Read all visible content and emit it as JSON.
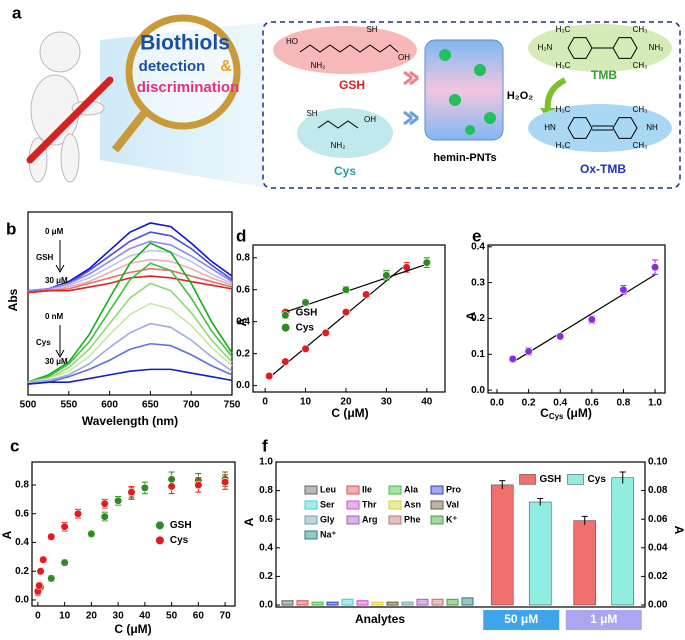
{
  "panel_a": {
    "label": "a",
    "title": [
      "Biothiols",
      "detection",
      "&",
      "discrimination"
    ],
    "molecules": {
      "gsh": "GSH",
      "cys": "Cys",
      "material": "hemin-PNTs",
      "tmb": "TMB",
      "oxidant": "H₂O₂",
      "ox_tmb": "Ox-TMB"
    },
    "atoms": {
      "gsh": [
        "HO",
        "NH₂",
        "SH",
        "OH"
      ],
      "cys": [
        "SH",
        "NH₂",
        "OH"
      ],
      "tmb": [
        "H₃C",
        "CH₃",
        "H₂N",
        "NH₂",
        "H₃C",
        "CH₃"
      ],
      "ox_tmb": [
        "H₃C",
        "CH₃",
        "HN",
        "NH",
        "H₃C",
        "CH₃"
      ]
    }
  },
  "chart_data": [
    {
      "type": "line",
      "label": "b",
      "xlabel": "Wavelength (nm)",
      "ylabel": "Abs",
      "x": [
        500,
        525,
        550,
        575,
        600,
        625,
        650,
        675,
        700,
        725,
        750
      ],
      "xlim": [
        500,
        750
      ],
      "xticks": [
        500,
        550,
        600,
        650,
        700,
        750
      ],
      "ylim": [
        0,
        1
      ],
      "annotations": [
        "0 μM",
        "GSH",
        "30 μM",
        "0 nM",
        "Cys",
        "30 μM"
      ],
      "series": [
        {
          "color": "#1010e0",
          "values": [
            0.57,
            0.58,
            0.62,
            0.69,
            0.79,
            0.89,
            0.94,
            0.92,
            0.83,
            0.73,
            0.65
          ]
        },
        {
          "color": "#4a4ae8",
          "values": [
            0.57,
            0.58,
            0.61,
            0.68,
            0.76,
            0.84,
            0.89,
            0.87,
            0.8,
            0.71,
            0.63
          ]
        },
        {
          "color": "#8a8ae8",
          "values": [
            0.57,
            0.58,
            0.61,
            0.66,
            0.73,
            0.8,
            0.84,
            0.82,
            0.76,
            0.69,
            0.62
          ]
        },
        {
          "color": "#c0c0ec",
          "values": [
            0.56,
            0.57,
            0.6,
            0.64,
            0.7,
            0.76,
            0.79,
            0.78,
            0.73,
            0.66,
            0.61
          ]
        },
        {
          "color": "#eab0b0",
          "values": [
            0.56,
            0.57,
            0.59,
            0.62,
            0.67,
            0.72,
            0.74,
            0.73,
            0.69,
            0.64,
            0.6
          ]
        },
        {
          "color": "#e87070",
          "values": [
            0.56,
            0.57,
            0.58,
            0.61,
            0.64,
            0.67,
            0.69,
            0.68,
            0.65,
            0.62,
            0.59
          ]
        },
        {
          "color": "#e02020",
          "values": [
            0.56,
            0.57,
            0.57,
            0.59,
            0.61,
            0.64,
            0.65,
            0.64,
            0.62,
            0.6,
            0.58
          ]
        },
        {
          "color": "#10b010",
          "values": [
            0.07,
            0.11,
            0.18,
            0.33,
            0.53,
            0.72,
            0.83,
            0.78,
            0.61,
            0.4,
            0.23
          ]
        },
        {
          "color": "#40c040",
          "values": [
            0.07,
            0.1,
            0.17,
            0.29,
            0.46,
            0.63,
            0.72,
            0.68,
            0.53,
            0.35,
            0.21
          ]
        },
        {
          "color": "#90d870",
          "values": [
            0.07,
            0.09,
            0.15,
            0.25,
            0.39,
            0.53,
            0.61,
            0.57,
            0.45,
            0.3,
            0.18
          ]
        },
        {
          "color": "#c8e8a0",
          "values": [
            0.07,
            0.09,
            0.13,
            0.21,
            0.33,
            0.44,
            0.5,
            0.47,
            0.38,
            0.26,
            0.16
          ]
        },
        {
          "color": "#a0a8e8",
          "values": [
            0.07,
            0.08,
            0.11,
            0.17,
            0.26,
            0.34,
            0.39,
            0.37,
            0.3,
            0.21,
            0.13
          ]
        },
        {
          "color": "#6070e0",
          "values": [
            0.06,
            0.07,
            0.1,
            0.14,
            0.19,
            0.25,
            0.28,
            0.27,
            0.22,
            0.16,
            0.11
          ]
        },
        {
          "color": "#1020c0",
          "values": [
            0.06,
            0.07,
            0.07,
            0.09,
            0.11,
            0.13,
            0.14,
            0.14,
            0.12,
            0.1,
            0.08
          ]
        }
      ]
    },
    {
      "type": "scatter",
      "label": "d",
      "xlabel": "C (μM)",
      "ylabel": "A",
      "legend": "center-left",
      "xlim": [
        -3,
        44.5
      ],
      "xticks": [
        0,
        10,
        20,
        30,
        40
      ],
      "ylim": [
        -0.04,
        0.88
      ],
      "yticks": [
        {
          "value": 0,
          "label": "0.0"
        },
        0.2,
        0.4,
        0.6,
        0.8
      ],
      "series": [
        {
          "name": "GSH",
          "color": "#e41a1c",
          "x": [
            1,
            5,
            10,
            15,
            20,
            25,
            30,
            35
          ],
          "values": [
            0.06,
            0.15,
            0.23,
            0.33,
            0.46,
            0.57,
            0.69,
            0.74
          ],
          "errors": [
            0.01,
            0.01,
            0.01,
            0.015,
            0.015,
            0.015,
            0.02,
            0.03
          ],
          "fit_x": [
            1,
            35
          ],
          "fit_values": [
            0.05,
            0.76
          ]
        },
        {
          "name": "Cys",
          "color": "#2e8b22",
          "x": [
            5,
            10,
            20,
            30,
            40
          ],
          "values": [
            0.44,
            0.52,
            0.6,
            0.69,
            0.77
          ],
          "errors": [
            0.02,
            0.02,
            0.02,
            0.03,
            0.03
          ],
          "fit_x": [
            5,
            40
          ],
          "fit_values": [
            0.46,
            0.76
          ]
        }
      ]
    },
    {
      "type": "scatter",
      "label": "e",
      "xlabel": [
        "C",
        "Cys",
        "(μM)"
      ],
      "ylabel": "A",
      "xlim": [
        -0.057,
        1.063
      ],
      "xticks": [
        {
          "value": 0,
          "label": "0.0"
        },
        0.2,
        0.4,
        0.6,
        0.8,
        {
          "value": 1,
          "label": "1.0"
        }
      ],
      "ylim": [
        -0.008,
        0.405
      ],
      "yticks": [
        {
          "value": 0,
          "label": "0.0"
        },
        0.1,
        0.2,
        0.3,
        0.4
      ],
      "series": [
        {
          "color": "#8a2be2",
          "x": [
            0.1,
            0.2,
            0.4,
            0.6,
            0.8,
            1.0
          ],
          "values": [
            0.087,
            0.108,
            0.15,
            0.197,
            0.28,
            0.343
          ],
          "errors": [
            0.008,
            0.01,
            0.006,
            0.01,
            0.012,
            0.02
          ],
          "fit_x": [
            0.1,
            1.0
          ],
          "fit_values": [
            0.078,
            0.322
          ]
        }
      ]
    },
    {
      "type": "scatter",
      "label": "c",
      "xlabel": "C (μM)",
      "ylabel": "A",
      "legend": "center-right",
      "xlim": [
        -2.2,
        73.7
      ],
      "xticks": [
        0,
        10,
        20,
        30,
        40,
        50,
        60,
        70
      ],
      "ylim": [
        -0.042,
        0.96
      ],
      "yticks": [
        {
          "value": 0,
          "label": "0.0"
        },
        0.2,
        0.4,
        0.6,
        0.8
      ],
      "series": [
        {
          "name": "GSH",
          "color": "#2e8b22",
          "x": [
            0,
            1,
            5,
            10,
            20,
            25,
            30,
            35,
            40,
            50,
            60,
            70
          ],
          "values": [
            0.05,
            0.09,
            0.15,
            0.26,
            0.46,
            0.58,
            0.69,
            0.74,
            0.78,
            0.84,
            0.83,
            0.84
          ],
          "errors": [
            0.02,
            0.02,
            0.02,
            0.02,
            0.02,
            0.03,
            0.03,
            0.04,
            0.04,
            0.05,
            0.05,
            0.05
          ]
        },
        {
          "name": "Cys",
          "color": "#e41a1c",
          "x": [
            0,
            0.5,
            1,
            2,
            5,
            10,
            15,
            25,
            35,
            50,
            60,
            70
          ],
          "values": [
            0.06,
            0.1,
            0.2,
            0.28,
            0.44,
            0.51,
            0.6,
            0.67,
            0.75,
            0.79,
            0.8,
            0.82
          ],
          "errors": [
            0.02,
            0.02,
            0.02,
            0.02,
            0.02,
            0.03,
            0.03,
            0.03,
            0.04,
            0.05,
            0.05,
            0.05
          ]
        }
      ]
    },
    {
      "type": "bar",
      "label": "f",
      "xlabel": "Analytes",
      "ylabel": "A",
      "y2label": "A",
      "legend": "upper-right",
      "ylim": [
        -0.014,
        1.0
      ],
      "yticks": [
        {
          "value": 0,
          "label": "0.0"
        },
        0.2,
        0.4,
        0.6,
        0.8,
        {
          "value": 1,
          "label": "1.0"
        }
      ],
      "y2lim": [
        -0.0014,
        0.1
      ],
      "y2ticks": [
        {
          "value": 0,
          "label": "0.00"
        },
        {
          "value": 0.02,
          "label": "0.02"
        },
        {
          "value": 0.04,
          "label": "0.04"
        },
        {
          "value": 0.06,
          "label": "0.06"
        },
        {
          "value": 0.08,
          "label": "0.08"
        },
        {
          "value": 0.1,
          "label": "0.10"
        }
      ],
      "categories": [
        "Leu",
        "Ile",
        "Ala",
        "Pro",
        "Ser",
        "Thr",
        "Asn",
        "Val",
        "Gly",
        "Arg",
        "Phe",
        "K⁺",
        "Na⁺"
      ],
      "colors": [
        "#666666",
        "#e05050",
        "#40c040",
        "#3040d0",
        "#40d0d0",
        "#d050d0",
        "#d8d030",
        "#6b5a3a",
        "#70a0b0",
        "#a060c0",
        "#c07070",
        "#40a040",
        "#208080"
      ],
      "values": [
        0.03,
        0.03,
        0.02,
        0.02,
        0.04,
        0.03,
        0.02,
        0.02,
        0.02,
        0.04,
        0.04,
        0.04,
        0.05
      ],
      "groups": [
        {
          "label": "50 μM",
          "color": "#3da5e8",
          "axis": "y",
          "values": [
            0.84,
            0.72
          ],
          "errors": [
            0.03,
            0.025
          ]
        },
        {
          "label": "1 μM",
          "color": "#aaa6f2",
          "axis": "y2",
          "values": [
            0.059,
            0.089
          ],
          "errors": [
            0.003,
            0.004
          ]
        }
      ],
      "series": [
        {
          "name": "GSH",
          "color": "#f07070"
        },
        {
          "name": "Cys",
          "color": "#90eee0"
        }
      ]
    }
  ]
}
